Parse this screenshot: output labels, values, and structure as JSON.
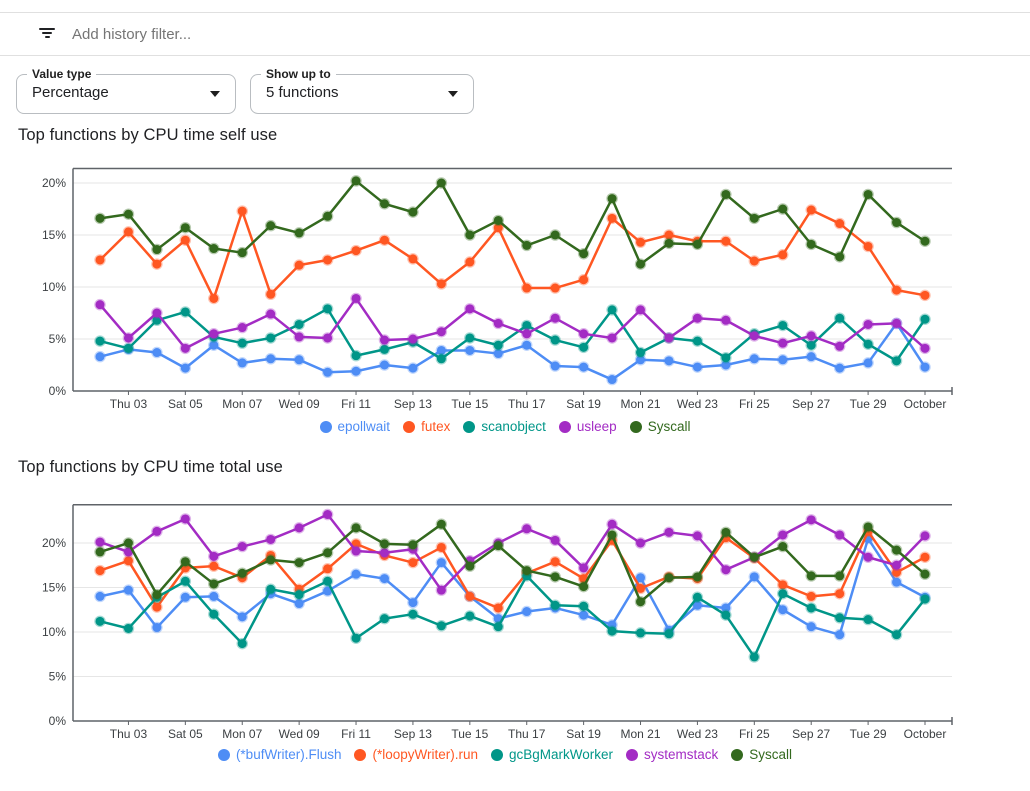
{
  "filter_bar": {
    "icon": "filter-list-icon",
    "placeholder": "Add history filter..."
  },
  "controls": [
    {
      "label": "Value type",
      "value": "Percentage"
    },
    {
      "label": "Show up to",
      "value": "5 functions"
    }
  ],
  "colors": {
    "blue": "#4e8df5",
    "orange": "#ff5722",
    "teal": "#009688",
    "purple": "#a32cc4",
    "green": "#33691e",
    "grid": "#e6e6e6",
    "axis": "#5f6368",
    "tick_text": "#3c4043"
  },
  "chart_data": [
    {
      "type": "line",
      "title": "Top functions by CPU time self use",
      "xlabel": "",
      "ylabel": "",
      "y_ticks": [
        0,
        5,
        10,
        15,
        20
      ],
      "y_tick_suffix": "%",
      "ylim": [
        0,
        21.4
      ],
      "grid": true,
      "legend_position": "bottom",
      "x_ticks": [
        {
          "index": 1,
          "label": "Thu 03"
        },
        {
          "index": 3,
          "label": "Sat 05"
        },
        {
          "index": 5,
          "label": "Mon 07"
        },
        {
          "index": 7,
          "label": "Wed 09"
        },
        {
          "index": 9,
          "label": "Fri 11"
        },
        {
          "index": 11,
          "label": "Sep 13"
        },
        {
          "index": 13,
          "label": "Tue 15"
        },
        {
          "index": 15,
          "label": "Thu 17"
        },
        {
          "index": 17,
          "label": "Sat 19"
        },
        {
          "index": 19,
          "label": "Mon 21"
        },
        {
          "index": 21,
          "label": "Wed 23"
        },
        {
          "index": 23,
          "label": "Fri 25"
        },
        {
          "index": 25,
          "label": "Sep 27"
        },
        {
          "index": 27,
          "label": "Tue 29"
        },
        {
          "index": 29,
          "label": "October"
        }
      ],
      "series": [
        {
          "name": "epollwait",
          "color": "#4e8df5",
          "values": [
            3.3,
            4.0,
            3.7,
            2.2,
            4.4,
            2.7,
            3.1,
            3.0,
            1.8,
            1.9,
            2.5,
            2.2,
            3.9,
            3.9,
            3.6,
            4.4,
            2.4,
            2.3,
            1.1,
            3.0,
            2.9,
            2.3,
            2.5,
            3.1,
            3.0,
            3.3,
            2.2,
            2.7,
            6.5,
            2.3
          ]
        },
        {
          "name": "futex",
          "color": "#ff5722",
          "values": [
            12.6,
            15.3,
            12.2,
            14.5,
            8.9,
            17.3,
            9.3,
            12.1,
            12.6,
            13.5,
            14.5,
            12.7,
            10.3,
            12.4,
            15.7,
            9.9,
            9.9,
            10.7,
            16.6,
            14.3,
            15.0,
            14.4,
            14.4,
            12.5,
            13.1,
            17.4,
            16.1,
            13.9,
            9.7,
            9.2
          ]
        },
        {
          "name": "scanobject",
          "color": "#009688",
          "values": [
            4.8,
            4.1,
            6.8,
            7.6,
            5.2,
            4.6,
            5.1,
            6.4,
            7.9,
            3.4,
            4.0,
            4.7,
            3.1,
            5.1,
            4.4,
            6.3,
            4.9,
            4.2,
            7.8,
            3.7,
            5.1,
            4.8,
            3.2,
            5.5,
            6.3,
            4.4,
            7.0,
            4.5,
            2.9,
            6.9
          ]
        },
        {
          "name": "usleep",
          "color": "#a32cc4",
          "values": [
            8.3,
            5.1,
            7.5,
            4.1,
            5.5,
            6.1,
            7.4,
            5.2,
            5.1,
            8.9,
            4.9,
            5.0,
            5.7,
            7.9,
            6.5,
            5.5,
            7.0,
            5.5,
            5.1,
            7.8,
            5.1,
            7.0,
            6.8,
            5.3,
            4.6,
            5.3,
            4.3,
            6.4,
            6.5,
            4.1
          ]
        },
        {
          "name": "Syscall",
          "color": "#33691e",
          "values": [
            16.6,
            17.0,
            13.6,
            15.7,
            13.7,
            13.3,
            15.9,
            15.2,
            16.8,
            20.2,
            18.0,
            17.2,
            20.0,
            15.0,
            16.4,
            14.0,
            15.0,
            13.2,
            18.5,
            12.2,
            14.2,
            14.1,
            18.9,
            16.6,
            17.5,
            14.1,
            12.9,
            18.9,
            16.2,
            14.4
          ]
        }
      ]
    },
    {
      "type": "line",
      "title": "Top functions by CPU time total use",
      "xlabel": "",
      "ylabel": "",
      "y_ticks": [
        0,
        5,
        10,
        15,
        20
      ],
      "y_tick_suffix": "%",
      "ylim": [
        0,
        24.3
      ],
      "grid": true,
      "legend_position": "bottom",
      "x_ticks": [
        {
          "index": 1,
          "label": "Thu 03"
        },
        {
          "index": 3,
          "label": "Sat 05"
        },
        {
          "index": 5,
          "label": "Mon 07"
        },
        {
          "index": 7,
          "label": "Wed 09"
        },
        {
          "index": 9,
          "label": "Fri 11"
        },
        {
          "index": 11,
          "label": "Sep 13"
        },
        {
          "index": 13,
          "label": "Tue 15"
        },
        {
          "index": 15,
          "label": "Thu 17"
        },
        {
          "index": 17,
          "label": "Sat 19"
        },
        {
          "index": 19,
          "label": "Mon 21"
        },
        {
          "index": 21,
          "label": "Wed 23"
        },
        {
          "index": 23,
          "label": "Fri 25"
        },
        {
          "index": 25,
          "label": "Sep 27"
        },
        {
          "index": 27,
          "label": "Tue 29"
        },
        {
          "index": 29,
          "label": "October"
        }
      ],
      "series": [
        {
          "name": "(*bufWriter).Flush",
          "color": "#4e8df5",
          "values": [
            14.0,
            14.7,
            10.5,
            13.9,
            14.0,
            11.7,
            14.3,
            13.2,
            14.6,
            16.5,
            16.0,
            13.3,
            17.8,
            14.0,
            11.5,
            12.3,
            12.7,
            11.9,
            10.8,
            16.1,
            10.2,
            13.0,
            12.7,
            16.2,
            12.5,
            10.6,
            9.7,
            20.5,
            15.6,
            13.9
          ]
        },
        {
          "name": "(*loopyWriter).run",
          "color": "#ff5722",
          "values": [
            16.9,
            18.0,
            12.8,
            17.2,
            17.4,
            16.1,
            18.6,
            14.8,
            17.1,
            19.9,
            18.6,
            17.8,
            19.5,
            14.0,
            12.7,
            16.6,
            17.9,
            16.0,
            20.3,
            14.9,
            16.2,
            16.0,
            20.6,
            18.3,
            15.3,
            14.0,
            14.3,
            21.3,
            16.7,
            18.4
          ]
        },
        {
          "name": "gcBgMarkWorker",
          "color": "#009688",
          "values": [
            11.2,
            10.4,
            13.9,
            15.7,
            12.0,
            8.7,
            14.8,
            14.2,
            15.7,
            9.3,
            11.5,
            12.0,
            10.7,
            11.8,
            10.6,
            16.3,
            13.0,
            12.9,
            10.1,
            9.9,
            9.8,
            13.9,
            11.9,
            7.2,
            14.3,
            12.7,
            11.6,
            11.4,
            9.7,
            13.7
          ]
        },
        {
          "name": "systemstack",
          "color": "#a32cc4",
          "values": [
            20.1,
            19.0,
            21.3,
            22.7,
            18.5,
            19.6,
            20.4,
            21.7,
            23.2,
            19.1,
            18.9,
            19.3,
            14.7,
            18.0,
            20.0,
            21.6,
            20.3,
            17.2,
            22.1,
            20.0,
            21.2,
            20.8,
            17.0,
            18.4,
            20.9,
            22.6,
            20.9,
            18.4,
            17.5,
            20.8
          ]
        },
        {
          "name": "Syscall",
          "color": "#33691e",
          "values": [
            19.0,
            20.0,
            14.2,
            17.9,
            15.4,
            16.6,
            18.1,
            17.8,
            18.9,
            21.7,
            19.9,
            19.8,
            22.1,
            17.4,
            19.7,
            16.9,
            16.2,
            15.1,
            20.9,
            13.4,
            16.1,
            16.2,
            21.2,
            18.4,
            19.6,
            16.3,
            16.3,
            21.8,
            19.2,
            16.5
          ]
        }
      ]
    }
  ]
}
